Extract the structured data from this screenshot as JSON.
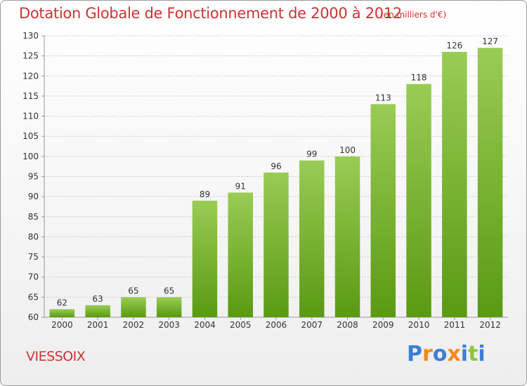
{
  "header": {
    "title": "Dotation Globale de Fonctionnement de 2000 à 2012",
    "unit": "(en milliers d'€)"
  },
  "footer": {
    "commune": "VIESSOIX",
    "brand": "Proxiti"
  },
  "colors": {
    "title": "#cc3333",
    "bar_light": "#99cc55",
    "bar_dark": "#5a9a12",
    "grid": "#cccccc",
    "brand_letters": [
      "#3a7fd5",
      "#f08a1c",
      "#3a7fd5",
      "#f08a1c",
      "#3a7fd5",
      "#8dc63f",
      "#3a7fd5"
    ]
  },
  "chart_data": {
    "type": "bar",
    "title": "Dotation Globale de Fonctionnement de 2000 à 2012",
    "subtitle": "(en milliers d'€)",
    "xlabel": "",
    "ylabel": "",
    "categories": [
      "2000",
      "2001",
      "2002",
      "2003",
      "2004",
      "2005",
      "2006",
      "2007",
      "2008",
      "2009",
      "2010",
      "2011",
      "2012"
    ],
    "values": [
      62,
      63,
      65,
      65,
      89,
      91,
      96,
      99,
      100,
      113,
      118,
      126,
      127
    ],
    "ylim": [
      60,
      130
    ],
    "yticks": [
      60,
      65,
      70,
      75,
      80,
      85,
      90,
      95,
      100,
      105,
      110,
      115,
      120,
      125,
      130
    ],
    "grid": true,
    "legend": "none"
  }
}
